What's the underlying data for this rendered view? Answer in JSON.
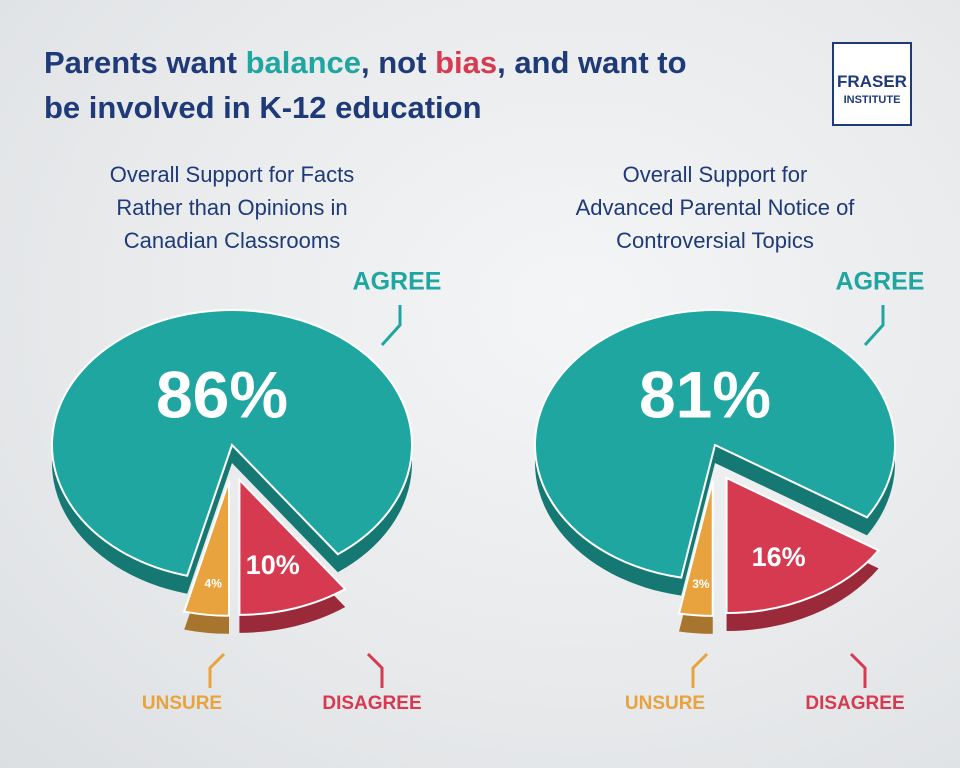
{
  "header": {
    "title_parts": [
      "Parents want ",
      "balance",
      ", not ",
      "bias",
      ", and want to\nbe involved in K-12 education"
    ],
    "logo_top": "FRASER",
    "logo_bottom": "INSTITUTE"
  },
  "chart_data": [
    {
      "type": "pie",
      "title": "Overall Support for Facts\nRather than Opinions in\nCanadian Classrooms",
      "categories": [
        "AGREE",
        "UNSURE",
        "DISAGREE"
      ],
      "values": [
        86,
        4,
        10
      ],
      "value_labels": [
        "86%",
        "4%",
        "10%"
      ],
      "colors": [
        "#1fa6a0",
        "#e8a33e",
        "#d63a50"
      ]
    },
    {
      "type": "pie",
      "title": "Overall Support for\nAdvanced Parental Notice of\nControversial Topics",
      "categories": [
        "AGREE",
        "UNSURE",
        "DISAGREE"
      ],
      "values": [
        81,
        3,
        16
      ],
      "value_labels": [
        "81%",
        "3%",
        "16%"
      ],
      "colors": [
        "#1fa6a0",
        "#e8a33e",
        "#d63a50"
      ]
    }
  ]
}
